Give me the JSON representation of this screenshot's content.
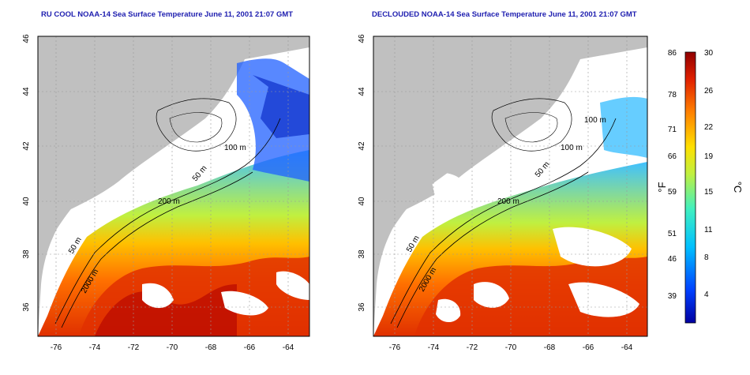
{
  "panels": [
    {
      "title": "RU COOL NOAA-14 Sea Surface Temperature June 11, 2001 21:07 GMT",
      "contour_labels": [
        "100 m",
        "50 m",
        "200 m",
        "50 m",
        "2000 m"
      ]
    },
    {
      "title": "DECLOUDED NOAA-14 Sea Surface Temperature June 11, 2001 21:07 GMT",
      "contour_labels": [
        "100 m",
        "100 m",
        "50 m",
        "200 m",
        "50 m",
        "2000 m"
      ]
    }
  ],
  "axes": {
    "x_ticks": [
      "-76",
      "-74",
      "-72",
      "-70",
      "-68",
      "-66",
      "-64"
    ],
    "y_ticks": [
      "46",
      "44",
      "42",
      "40",
      "38",
      "36"
    ]
  },
  "colorbar": {
    "fahrenheit_ticks": [
      "86",
      "78",
      "71",
      "66",
      "59",
      "51",
      "46",
      "39"
    ],
    "celsius_ticks": [
      "30",
      "26",
      "22",
      "19",
      "15",
      "11",
      "8",
      "4"
    ],
    "fahrenheit_unit": "°F",
    "celsius_unit": "°C"
  },
  "colors": {
    "land": "#c0c0c0",
    "cloud": "#ffffff",
    "title": "#2020b0"
  }
}
